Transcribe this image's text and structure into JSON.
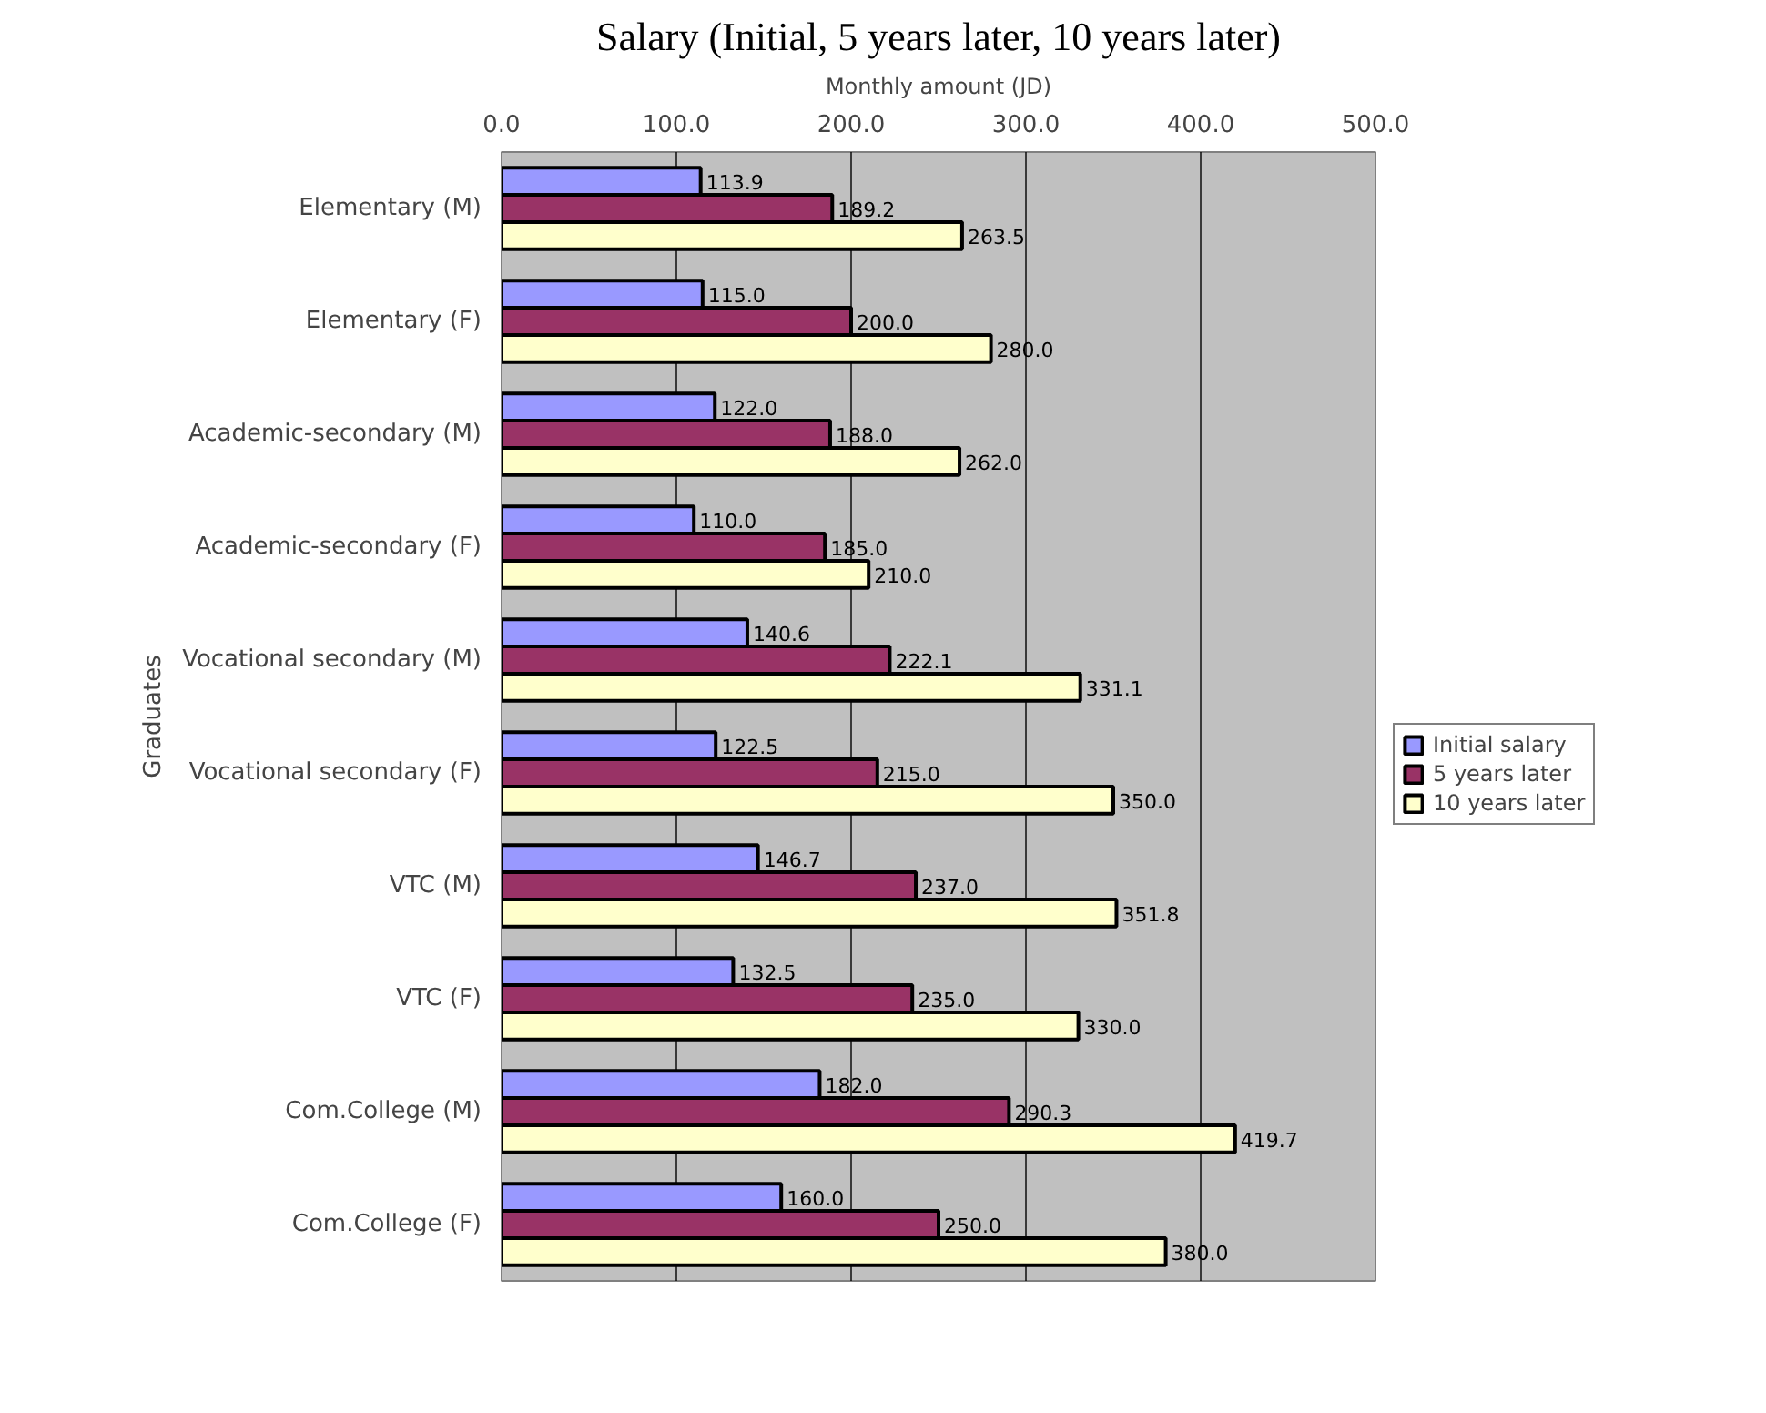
{
  "chart_data": {
    "type": "bar",
    "orientation": "horizontal",
    "title": "Salary (Initial, 5 years later, 10 years later)",
    "xlabel": "Monthly amount (JD)",
    "ylabel": "Graduates",
    "categories": [
      "Elementary (M)",
      "Elementary (F)",
      "Academic-secondary (M)",
      "Academic-secondary (F)",
      "Vocational secondary (M)",
      "Vocational secondary (F)",
      "VTC (M)",
      "VTC (F)",
      "Com.College (M)",
      "Com.College (F)"
    ],
    "series": [
      {
        "name": "Initial salary",
        "color": "#9999ff",
        "values": [
          113.9,
          115.0,
          122.0,
          110.0,
          140.6,
          122.5,
          146.7,
          132.5,
          182.0,
          160.0
        ],
        "value_labels": [
          "113.9",
          "115.0",
          "122.0",
          "110.0",
          "140.6",
          "122.5",
          "146.7",
          "132.5",
          "182.0",
          "160.0"
        ]
      },
      {
        "name": "5 years later",
        "color": "#993366",
        "values": [
          189.2,
          200.0,
          188.0,
          185.0,
          222.1,
          215.0,
          237.0,
          235.0,
          290.3,
          250.0
        ],
        "value_labels": [
          "189.2",
          "200.0",
          "188.0",
          "185.0",
          "222.1",
          "215.0",
          "237.0",
          "235.0",
          "290.3",
          "250.0"
        ]
      },
      {
        "name": "10 years later",
        "color": "#ffffcc",
        "values": [
          263.5,
          280.0,
          262.0,
          210.0,
          331.1,
          350.0,
          351.8,
          330.0,
          419.7,
          380.0
        ],
        "value_labels": [
          "263.5",
          "280.0",
          "262.0",
          "210.0",
          "331.1",
          "350.0",
          "351.8",
          "330.0",
          "419.7",
          "380.0"
        ]
      }
    ],
    "xlim": [
      0,
      500
    ],
    "xticks": [
      {
        "value": 0,
        "label": "0.0"
      },
      {
        "value": 100,
        "label": "100.0"
      },
      {
        "value": 200,
        "label": "200.0"
      },
      {
        "value": 300,
        "label": "300.0"
      },
      {
        "value": 400,
        "label": "400.0"
      },
      {
        "value": 500,
        "label": "500.0"
      }
    ],
    "grid": "x",
    "legend": "right"
  }
}
